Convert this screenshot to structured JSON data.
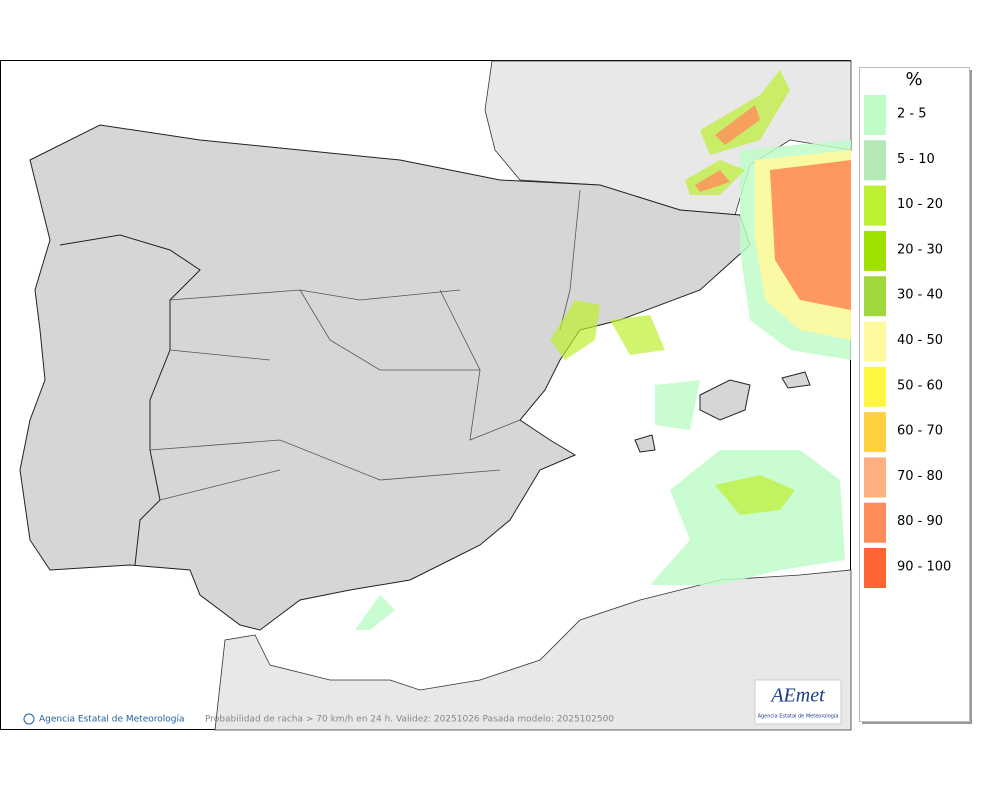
{
  "legend": {
    "title": "%",
    "entries": [
      {
        "label": "2 - 5",
        "color": "#c0fcc8"
      },
      {
        "label": "5 - 10",
        "color": "#b4e8b4"
      },
      {
        "label": "10 - 20",
        "color": "#bef032"
      },
      {
        "label": "20 - 30",
        "color": "#a0e000"
      },
      {
        "label": "30 - 40",
        "color": "#a0d83c"
      },
      {
        "label": "40 - 50",
        "color": "#fffaa0"
      },
      {
        "label": "50 - 60",
        "color": "#fff740"
      },
      {
        "label": "60 - 70",
        "color": "#ffd040"
      },
      {
        "label": "70 - 80",
        "color": "#ffb080"
      },
      {
        "label": "80 - 90",
        "color": "#ff8c5a"
      },
      {
        "label": "90 - 100",
        "color": "#ff6432"
      }
    ]
  },
  "footer": {
    "credit": "Agencia Estatal de Meteorología",
    "caption": "Probabilidad de racha > 70 km/h en 24 h. Validez: 20251026 Pasada modelo: 2025102500"
  },
  "logo": {
    "text": "AEmet",
    "subtitle": "Agencia Estatal de Meteorología"
  }
}
